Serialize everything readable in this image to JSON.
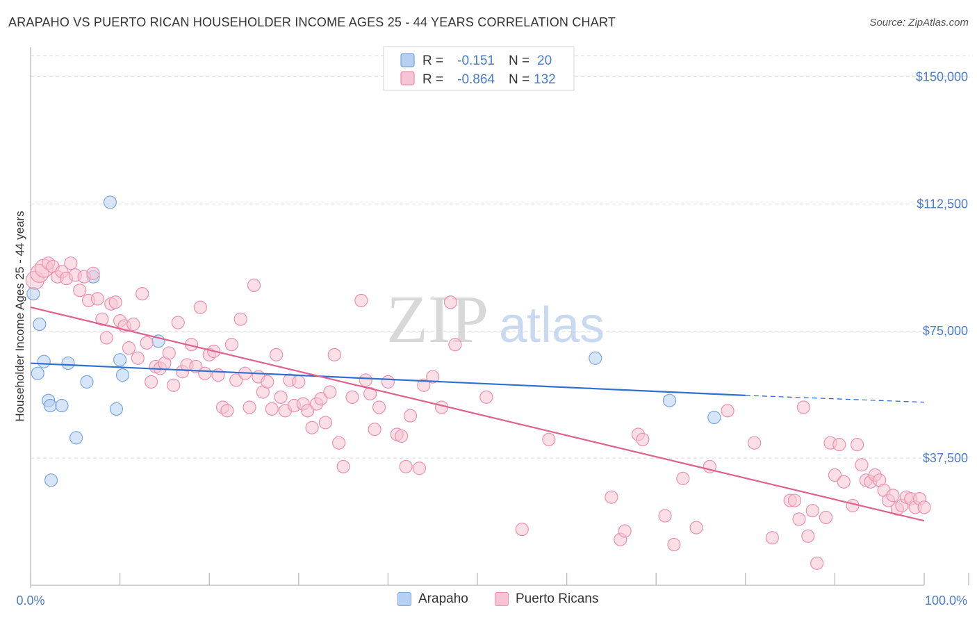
{
  "title": "ARAPAHO VS PUERTO RICAN HOUSEHOLDER INCOME AGES 25 - 44 YEARS CORRELATION CHART",
  "source": "Source: ZipAtlas.com",
  "watermark": {
    "zip": "ZIP",
    "atlas": "atlas"
  },
  "colors": {
    "arapaho_fill": "#b7d0f2",
    "arapaho_stroke": "#7aa6de",
    "arapaho_line": "#2f6fcf",
    "pr_fill": "#f6c4d4",
    "pr_stroke": "#ec8fb0",
    "pr_line": "#e0608f",
    "tick_text": "#4a7cc9",
    "grid": "#d9d9d9"
  },
  "stats_legend": [
    {
      "r_label": "R =",
      "r_value": "-0.151",
      "n_label": "N =",
      "n_value": "20"
    },
    {
      "r_label": "R =",
      "r_value": "-0.864",
      "n_label": "N =",
      "n_value": "132"
    }
  ],
  "bottom_legend": {
    "arapaho": "Arapaho",
    "pr": "Puerto Ricans"
  },
  "chart_data": {
    "type": "scatter",
    "title": "ARAPAHO VS PUERTO RICAN HOUSEHOLDER INCOME AGES 25 - 44 YEARS CORRELATION CHART",
    "xlabel": "",
    "ylabel": "Householder Income Ages 25 - 44 years",
    "xlim": [
      0,
      100
    ],
    "ylim": [
      0,
      156250
    ],
    "x_tick_labels": [
      "0.0%",
      "100.0%"
    ],
    "y_ticks": [
      37500,
      75000,
      112500,
      150000
    ],
    "y_tick_labels": [
      "$37,500",
      "$75,000",
      "$112,500",
      "$150,000"
    ],
    "grid": true,
    "legend_position": "top-center",
    "series": [
      {
        "name": "Arapaho",
        "trend": {
          "x": [
            0,
            80
          ],
          "y": [
            65500,
            56000
          ],
          "dashed_extension_to_x": 100,
          "dashed_end_y": 54000
        },
        "points": [
          [
            0.3,
            86000
          ],
          [
            0.8,
            62500
          ],
          [
            1.0,
            77000
          ],
          [
            1.5,
            66000
          ],
          [
            2.0,
            54500
          ],
          [
            2.2,
            53000
          ],
          [
            2.3,
            31000
          ],
          [
            3.5,
            53000
          ],
          [
            4.2,
            65500
          ],
          [
            5.1,
            43500
          ],
          [
            6.3,
            60000
          ],
          [
            7.0,
            91000
          ],
          [
            8.9,
            113000
          ],
          [
            9.6,
            52000
          ],
          [
            10.0,
            66500
          ],
          [
            10.3,
            62000
          ],
          [
            14.3,
            72000
          ],
          [
            63.2,
            67000
          ],
          [
            71.5,
            54500
          ],
          [
            76.5,
            49500
          ]
        ]
      },
      {
        "name": "Puerto Ricans",
        "trend": {
          "x": [
            0,
            100
          ],
          "y": [
            82000,
            19000
          ]
        },
        "points": [
          [
            0.5,
            90000
          ],
          [
            1.0,
            92000
          ],
          [
            1.5,
            93500
          ],
          [
            2.0,
            95000
          ],
          [
            2.5,
            94000
          ],
          [
            3.0,
            91000
          ],
          [
            3.5,
            92500
          ],
          [
            4.0,
            90500
          ],
          [
            4.5,
            95000
          ],
          [
            5.0,
            91500
          ],
          [
            5.5,
            87000
          ],
          [
            6.0,
            91000
          ],
          [
            6.5,
            84000
          ],
          [
            7.0,
            92000
          ],
          [
            7.5,
            84500
          ],
          [
            8.0,
            78500
          ],
          [
            8.5,
            73000
          ],
          [
            9.0,
            83000
          ],
          [
            9.5,
            83500
          ],
          [
            10.0,
            78000
          ],
          [
            10.5,
            76500
          ],
          [
            11.0,
            70000
          ],
          [
            11.5,
            77000
          ],
          [
            12.0,
            67000
          ],
          [
            12.5,
            86000
          ],
          [
            13.0,
            71500
          ],
          [
            13.5,
            60000
          ],
          [
            14.0,
            64500
          ],
          [
            14.5,
            64000
          ],
          [
            15.0,
            65500
          ],
          [
            15.5,
            68500
          ],
          [
            16.0,
            59000
          ],
          [
            16.5,
            77500
          ],
          [
            17.0,
            63000
          ],
          [
            17.5,
            65000
          ],
          [
            18.0,
            71000
          ],
          [
            18.5,
            64500
          ],
          [
            19.0,
            82000
          ],
          [
            19.5,
            62500
          ],
          [
            20.0,
            68000
          ],
          [
            20.5,
            69000
          ],
          [
            21.0,
            62000
          ],
          [
            21.5,
            52500
          ],
          [
            22.0,
            51500
          ],
          [
            22.5,
            71000
          ],
          [
            23.0,
            60500
          ],
          [
            23.5,
            78500
          ],
          [
            24.0,
            62500
          ],
          [
            24.5,
            52500
          ],
          [
            25.0,
            88500
          ],
          [
            25.5,
            61500
          ],
          [
            26.0,
            57000
          ],
          [
            26.5,
            60000
          ],
          [
            27.0,
            52000
          ],
          [
            27.5,
            68000
          ],
          [
            28.0,
            55500
          ],
          [
            28.5,
            51500
          ],
          [
            29.0,
            60500
          ],
          [
            29.5,
            53000
          ],
          [
            30.0,
            60000
          ],
          [
            30.5,
            53500
          ],
          [
            31.0,
            51500
          ],
          [
            31.5,
            46500
          ],
          [
            32.0,
            53500
          ],
          [
            32.5,
            55000
          ],
          [
            33.0,
            48000
          ],
          [
            33.5,
            57000
          ],
          [
            34.0,
            68000
          ],
          [
            34.5,
            42000
          ],
          [
            35.0,
            35000
          ],
          [
            36.0,
            55500
          ],
          [
            37.0,
            84000
          ],
          [
            37.5,
            60500
          ],
          [
            38.0,
            56500
          ],
          [
            38.5,
            46000
          ],
          [
            39.0,
            52500
          ],
          [
            40.0,
            60000
          ],
          [
            41.0,
            44500
          ],
          [
            41.5,
            44000
          ],
          [
            42.0,
            35000
          ],
          [
            42.5,
            50000
          ],
          [
            43.5,
            34500
          ],
          [
            44.0,
            59000
          ],
          [
            45.0,
            61500
          ],
          [
            46.0,
            52500
          ],
          [
            47.0,
            83500
          ],
          [
            47.5,
            71000
          ],
          [
            51.0,
            55500
          ],
          [
            55.0,
            16500
          ],
          [
            58.0,
            43000
          ],
          [
            65.0,
            26000
          ],
          [
            66.0,
            13500
          ],
          [
            66.5,
            16000
          ],
          [
            68.0,
            44500
          ],
          [
            68.5,
            43000
          ],
          [
            71.0,
            20500
          ],
          [
            72.0,
            12000
          ],
          [
            73.0,
            31500
          ],
          [
            74.5,
            17000
          ],
          [
            76.0,
            35000
          ],
          [
            78.0,
            51500
          ],
          [
            81.0,
            42000
          ],
          [
            83.0,
            14000
          ],
          [
            85.0,
            25000
          ],
          [
            85.5,
            25000
          ],
          [
            86.0,
            19500
          ],
          [
            86.5,
            52500
          ],
          [
            87.0,
            14500
          ],
          [
            87.5,
            22000
          ],
          [
            88.0,
            6500
          ],
          [
            89.0,
            20000
          ],
          [
            89.5,
            42000
          ],
          [
            90.0,
            32500
          ],
          [
            90.5,
            41500
          ],
          [
            91.0,
            30500
          ],
          [
            92.0,
            23500
          ],
          [
            92.5,
            41500
          ],
          [
            93.0,
            35500
          ],
          [
            93.5,
            31000
          ],
          [
            94.0,
            30500
          ],
          [
            94.5,
            32500
          ],
          [
            95.0,
            31000
          ],
          [
            95.5,
            28000
          ],
          [
            96.0,
            25000
          ],
          [
            96.5,
            26500
          ],
          [
            97.0,
            22500
          ],
          [
            97.5,
            23500
          ],
          [
            98.0,
            26000
          ],
          [
            98.5,
            25500
          ],
          [
            99.0,
            23000
          ],
          [
            99.5,
            25500
          ],
          [
            100.0,
            23000
          ]
        ]
      }
    ]
  }
}
